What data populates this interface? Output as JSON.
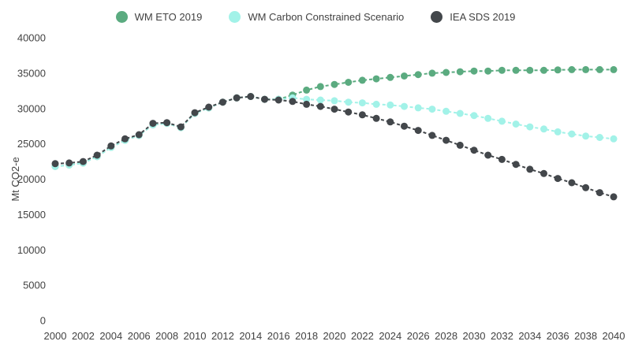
{
  "chart_data": {
    "type": "line",
    "title": "",
    "xlabel": "",
    "ylabel": "Mt CO2-e",
    "ylim": [
      0,
      40000
    ],
    "yticks": [
      0,
      5000,
      10000,
      15000,
      20000,
      25000,
      30000,
      35000,
      40000
    ],
    "x": [
      2000,
      2001,
      2002,
      2003,
      2004,
      2005,
      2006,
      2007,
      2008,
      2009,
      2010,
      2011,
      2012,
      2013,
      2014,
      2015,
      2016,
      2017,
      2018,
      2019,
      2020,
      2021,
      2022,
      2023,
      2024,
      2025,
      2026,
      2027,
      2028,
      2029,
      2030,
      2031,
      2032,
      2033,
      2034,
      2035,
      2036,
      2037,
      2038,
      2039,
      2040
    ],
    "xtick_step": 2,
    "grid": false,
    "legend_position": "top",
    "line_style": "dashed",
    "marker": "circle",
    "series": [
      {
        "name": "WM ETO 2019",
        "color": "#5bab80",
        "values": [
          21800,
          22000,
          22300,
          23200,
          24500,
          25500,
          26200,
          27700,
          27900,
          27300,
          29300,
          30100,
          30900,
          31500,
          31700,
          31300,
          31300,
          31900,
          32600,
          33100,
          33400,
          33700,
          34000,
          34200,
          34400,
          34600,
          34800,
          35000,
          35100,
          35200,
          35300,
          35300,
          35400,
          35400,
          35400,
          35400,
          35450,
          35500,
          35500,
          35500,
          35500
        ]
      },
      {
        "name": "WM Carbon Constrained Scenario",
        "color": "#a2f2e8",
        "values": [
          21800,
          22000,
          22300,
          23200,
          24500,
          25500,
          26200,
          27700,
          27900,
          27300,
          29300,
          30100,
          30900,
          31500,
          31700,
          31300,
          31300,
          31500,
          31300,
          31200,
          31100,
          30900,
          30800,
          30600,
          30500,
          30300,
          30100,
          29900,
          29600,
          29300,
          29000,
          28600,
          28200,
          27800,
          27400,
          27100,
          26700,
          26400,
          26100,
          25900,
          25700
        ]
      },
      {
        "name": "IEA SDS 2019",
        "color": "#43474b",
        "values": [
          22200,
          22300,
          22500,
          23400,
          24700,
          25700,
          26300,
          27900,
          28000,
          27400,
          29400,
          30200,
          30900,
          31500,
          31700,
          31300,
          31200,
          31000,
          30600,
          30300,
          29900,
          29500,
          29100,
          28600,
          28100,
          27500,
          26900,
          26200,
          25500,
          24800,
          24100,
          23400,
          22800,
          22100,
          21400,
          20800,
          20100,
          19500,
          18800,
          18100,
          17500
        ]
      }
    ]
  },
  "colors": {
    "text": "#424242",
    "background": "#ffffff"
  }
}
